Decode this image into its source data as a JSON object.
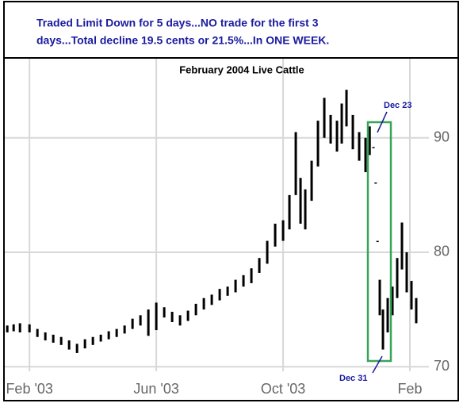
{
  "chart_data": {
    "type": "hilo",
    "headline": [
      "Traded Limit Down for 5 days...NO trade for the first 3",
      "days...Total decline 19.5 cents or 21.5%...In ONE WEEK."
    ],
    "title": "February 2004 Live Cattle",
    "annotations": [
      "Dec 23",
      "Dec 31"
    ],
    "color": "#000000",
    "highlight_color": "#3aa35a",
    "grid": true,
    "xlim": [
      -0.73,
      12.6
    ],
    "xticks": [
      {
        "value": 0,
        "label": "Feb '03"
      },
      {
        "value": 4,
        "label": "Jun '03"
      },
      {
        "value": 8,
        "label": "Oct '03"
      },
      {
        "value": 12,
        "label": "Feb"
      }
    ],
    "ylim": [
      69.6,
      96.5
    ],
    "yticks": [
      70,
      80,
      90
    ],
    "series": [
      {
        "x": [
          -0.7,
          -0.5,
          -0.3,
          0,
          0.25,
          0.5,
          0.75,
          1.0,
          1.25,
          1.5,
          1.75,
          2.0,
          2.25,
          2.5,
          2.75,
          3.0,
          3.25,
          3.5,
          3.75,
          4.0,
          4.25,
          4.5,
          4.75,
          5.0,
          5.25,
          5.5,
          5.75,
          6.0,
          6.25,
          6.5,
          6.75,
          7.0,
          7.25,
          7.5,
          7.75,
          8.0,
          8.2,
          8.4,
          8.55,
          8.7,
          8.9,
          9.1,
          9.3,
          9.5,
          9.7,
          9.85,
          10.0,
          10.2,
          10.4,
          10.6,
          10.73,
          10.85,
          10.92,
          10.98,
          11.05,
          11.15,
          11.3,
          11.45,
          11.6,
          11.75,
          11.9,
          12.05,
          12.2
        ],
        "high": [
          73.6,
          73.7,
          73.8,
          73.7,
          73.3,
          73.0,
          72.8,
          72.6,
          72.3,
          72.0,
          72.4,
          72.6,
          72.8,
          73.1,
          73.3,
          73.6,
          74.2,
          74.5,
          75.0,
          75.6,
          75.2,
          74.8,
          74.5,
          74.9,
          75.5,
          76.0,
          76.3,
          76.8,
          77.0,
          77.6,
          78.0,
          78.6,
          79.5,
          81.0,
          82.5,
          82.8,
          85.0,
          90.5,
          86.5,
          85.5,
          88.0,
          91.5,
          93.5,
          92.0,
          91.5,
          93.0,
          94.2,
          92.0,
          90.5,
          90.0,
          91.0,
          89.2,
          86.1,
          81.0,
          77.6,
          75.0,
          76.0,
          77.0,
          79.5,
          82.6,
          80.0,
          77.5,
          76.0
        ],
        "low": [
          73.0,
          73.1,
          73.0,
          73.0,
          72.6,
          72.3,
          72.1,
          71.9,
          71.5,
          71.2,
          71.6,
          71.9,
          72.2,
          72.4,
          72.6,
          72.9,
          73.3,
          73.6,
          72.7,
          73.2,
          74.3,
          73.9,
          73.6,
          74.0,
          74.5,
          75.0,
          75.4,
          75.8,
          76.2,
          76.5,
          77.0,
          77.3,
          78.2,
          79.0,
          80.5,
          81.0,
          82.0,
          85.0,
          82.5,
          82.0,
          84.5,
          87.5,
          90.0,
          89.5,
          88.8,
          89.5,
          91.0,
          89.0,
          88.0,
          87.0,
          88.5,
          89.1,
          86.0,
          80.9,
          74.5,
          71.5,
          73.0,
          74.5,
          76.0,
          78.5,
          76.5,
          75.0,
          73.8
        ]
      }
    ]
  }
}
